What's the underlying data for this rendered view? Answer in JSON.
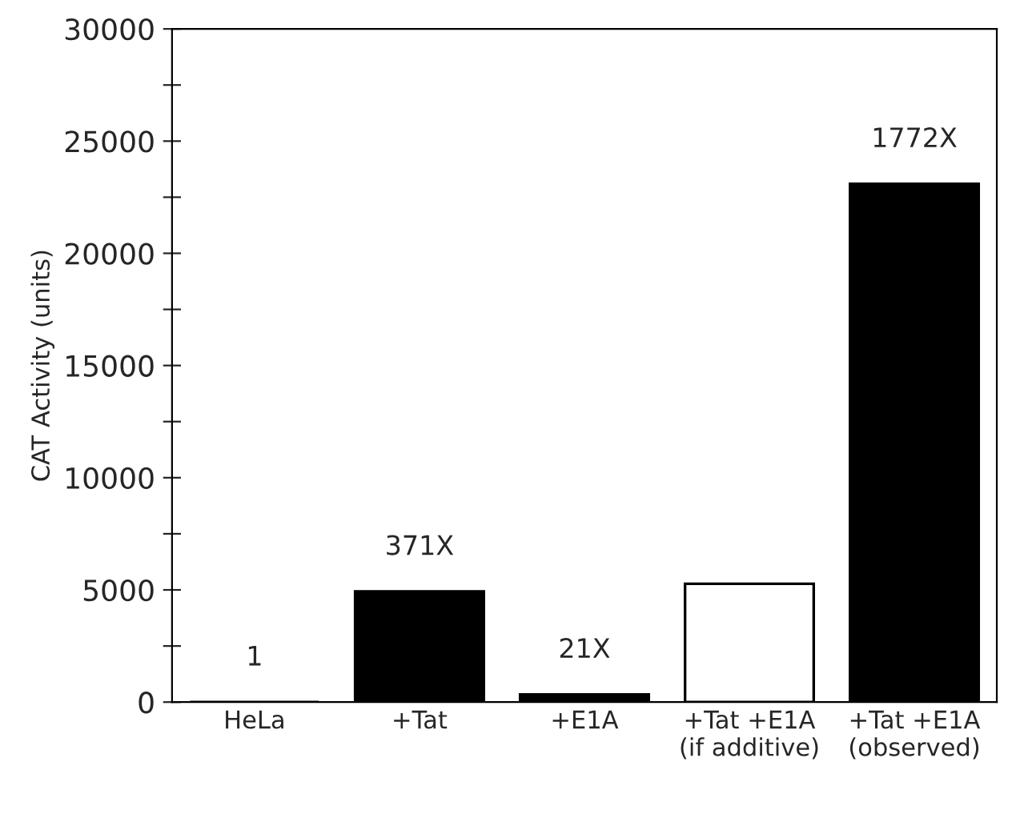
{
  "chart_data": {
    "type": "bar",
    "ylabel": "CAT Activity (units)",
    "categories": [
      "HeLa",
      "+Tat",
      "+E1A",
      "+Tat +E1A\n(if additive)",
      "+Tat +E1A\n(observed)"
    ],
    "values": [
      0,
      4930,
      340,
      5270,
      23100
    ],
    "colors": [
      "#000000",
      "#000000",
      "#000000",
      "#ffffff",
      "#000000"
    ],
    "annotations": [
      {
        "text": "1",
        "x": "HeLa",
        "y": 0
      },
      {
        "text": "371X",
        "x": "+Tat",
        "y": 4930
      },
      {
        "text": "21X",
        "x": "+E1A",
        "y": 340
      },
      {
        "text": "1772X",
        "x": "+Tat +E1A\n(observed)",
        "y": 23100
      }
    ],
    "ylim": [
      0,
      30000
    ],
    "yticks": [
      0,
      {
        "value": 2500,
        "label": null
      },
      5000,
      {
        "value": 7500,
        "label": null
      },
      10000,
      {
        "value": 12500,
        "label": null
      },
      15000,
      {
        "value": 17500,
        "label": null
      },
      20000,
      {
        "value": 22500,
        "label": null
      },
      25000,
      {
        "value": 27500,
        "label": null
      },
      30000
    ],
    "grid": false,
    "legend": false
  }
}
